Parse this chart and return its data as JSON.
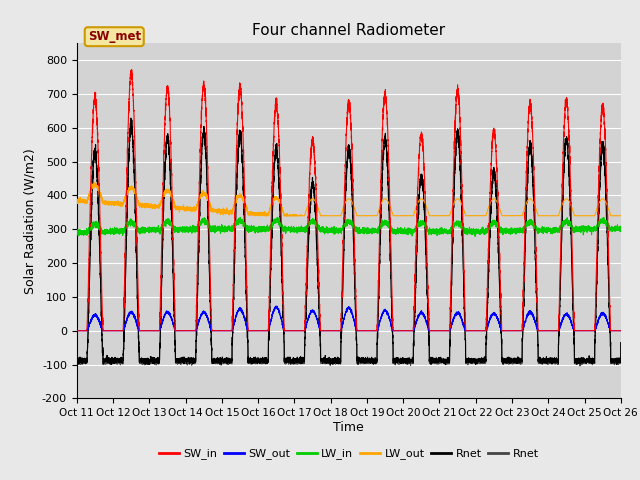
{
  "title": "Four channel Radiometer",
  "xlabel": "Time",
  "ylabel": "Solar Radiation (W/m2)",
  "ylim": [
    -200,
    850
  ],
  "yticks": [
    -200,
    -100,
    0,
    100,
    200,
    300,
    400,
    500,
    600,
    700,
    800
  ],
  "xtick_labels": [
    "Oct 11",
    "Oct 12",
    "Oct 13",
    "Oct 14",
    "Oct 15",
    "Oct 16",
    "Oct 17",
    "Oct 18",
    "Oct 19",
    "Oct 20",
    "Oct 21",
    "Oct 22",
    "Oct 23",
    "Oct 24",
    "Oct 25",
    "Oct 26"
  ],
  "annotation_text": "SW_met",
  "colors": {
    "SW_in": "#ff0000",
    "SW_out": "#0000ff",
    "LW_in": "#00cc00",
    "LW_out": "#ffa500",
    "Rnet_black": "#000000",
    "Rnet_dark": "#444444"
  },
  "bg_color": "#e8e8e8",
  "plot_bg_color": "#d3d3d3",
  "n_days": 15,
  "period": 480
}
